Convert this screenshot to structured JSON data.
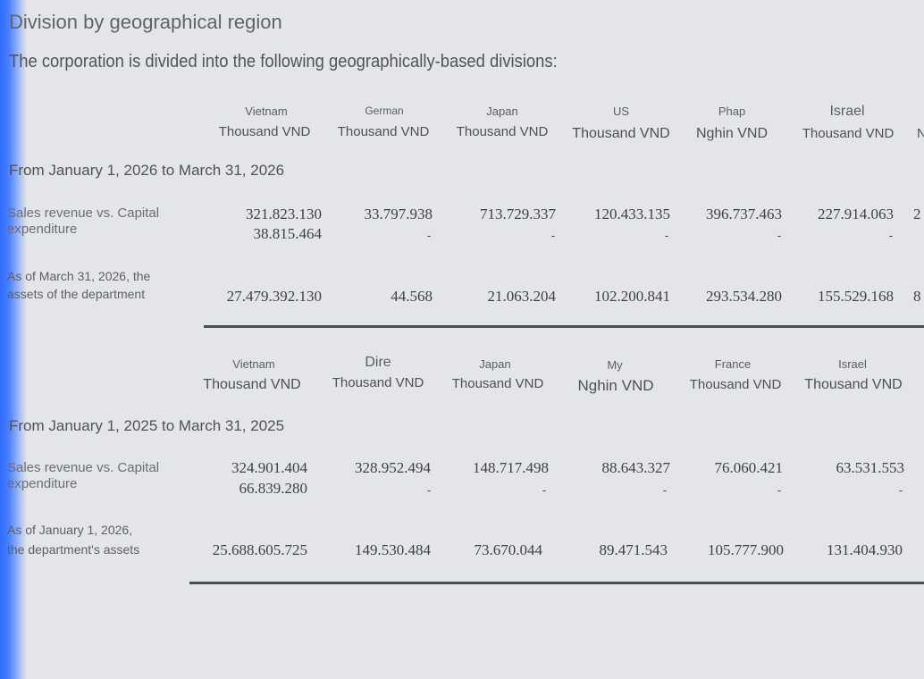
{
  "title": "Division by geographical region",
  "intro": "The corporation is divided into the following geographically-based divisions:",
  "section1": {
    "columns": [
      {
        "country": "Vietnam",
        "unit": "Thousand VND"
      },
      {
        "country": "German",
        "unit": "Thousand VND"
      },
      {
        "country": "Japan",
        "unit": "Thousand VND"
      },
      {
        "country": "US",
        "unit": "Thousand VND"
      },
      {
        "country": "Phap",
        "unit": "Nghin VND"
      },
      {
        "country": "Israel",
        "unit": "Thousand VND"
      },
      {
        "country": "",
        "unit": "N"
      }
    ],
    "period": "From January 1, 2026 to March 31, 2026",
    "revenue_label": "Sales revenue vs. Capital expenditure",
    "revenue_values": [
      "321.823.130",
      "33.797.938",
      "713.729.337",
      "120.433.135",
      "396.737.463",
      "227.914.063",
      "2"
    ],
    "capex_values": [
      "38.815.464",
      "-",
      "-",
      "-",
      "-",
      "-"
    ],
    "assets_label_line1": "As of March 31, 2026, the",
    "assets_label_line2": "assets of the department",
    "assets_values": [
      "27.479.392.130",
      "44.568",
      "21.063.204",
      "102.200.841",
      "293.534.280",
      "155.529.168",
      "8"
    ]
  },
  "section2": {
    "columns": [
      {
        "country": "Vietnam",
        "unit": "Thousand VND"
      },
      {
        "country": "Dire",
        "unit": "Thousand VND"
      },
      {
        "country": "Japan",
        "unit": "Thousand VND"
      },
      {
        "country": "My",
        "unit": "Nghin VND"
      },
      {
        "country": "France",
        "unit": "Thousand VND"
      },
      {
        "country": "Israel",
        "unit": "Thousand VND"
      }
    ],
    "period": "From January 1, 2025 to March 31, 2025",
    "revenue_label": "Sales revenue vs. Capital expenditure",
    "revenue_values": [
      "324.901.404",
      "328.952.494",
      "148.717.498",
      "88.643.327",
      "76.060.421",
      "63.531.553"
    ],
    "capex_values": [
      "66.839.280",
      "-",
      "-",
      "-",
      "-",
      "-"
    ],
    "assets_label_line1": "As of January 1, 2026,",
    "assets_label_line2": "the department's assets",
    "assets_values": [
      "25.688.605.725",
      "149.530.484",
      "73.670.044",
      "89.471.543",
      "105.777.900",
      "131.404.930"
    ]
  }
}
